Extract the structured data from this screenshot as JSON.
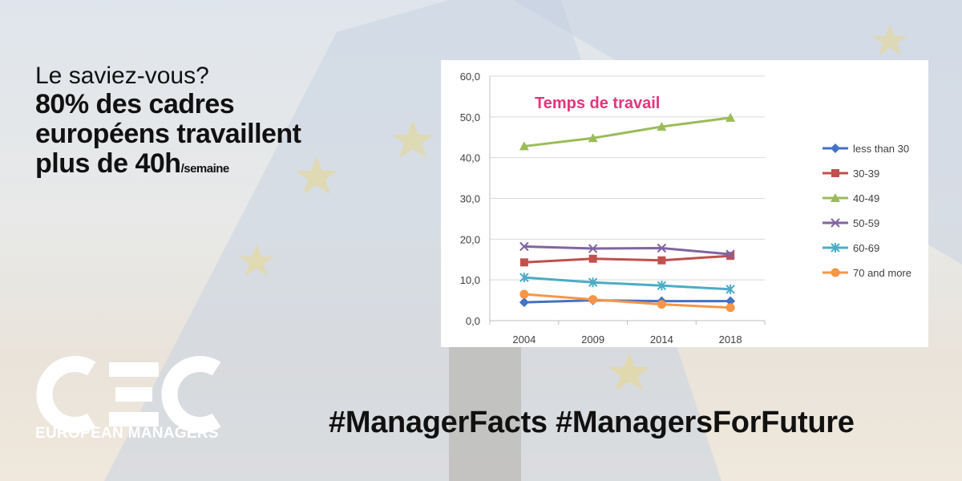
{
  "intro": {
    "line1": "Le saviez-vous?",
    "line2": "80% des cadres",
    "line3": "européens travaillent",
    "line4": "plus de 40h",
    "unit": "/semaine"
  },
  "logo": {
    "letters": "CEC",
    "subtitle": "EUROPEAN MANAGERS"
  },
  "hashtags": "#ManagerFacts #ManagersForFuture",
  "colors": {
    "chart_title": "#e5337d",
    "logo": "#ffffff",
    "eu_star": "#f2d35a"
  },
  "chart_data": {
    "type": "line",
    "title": "Temps de travail",
    "xlabel": "",
    "ylabel": "",
    "categories": [
      "2004",
      "2009",
      "2014",
      "2018"
    ],
    "ylim": [
      0,
      60
    ],
    "yticks": [
      "0,0",
      "10,0",
      "20,0",
      "30,0",
      "40,0",
      "50,0",
      "60,0"
    ],
    "grid": true,
    "legend_position": "right",
    "series": [
      {
        "name": "less than 30",
        "values": [
          4.5,
          5.0,
          4.8,
          4.8
        ],
        "color": "#4472c4",
        "marker": "diamond"
      },
      {
        "name": "30-39",
        "values": [
          14.3,
          15.2,
          14.8,
          15.9
        ],
        "color": "#c0504d",
        "marker": "square"
      },
      {
        "name": "40-49",
        "values": [
          42.8,
          44.8,
          47.6,
          49.8
        ],
        "color": "#9bbb59",
        "marker": "triangle"
      },
      {
        "name": "50-59",
        "values": [
          18.2,
          17.7,
          17.8,
          16.3
        ],
        "color": "#8064a2",
        "marker": "x"
      },
      {
        "name": "60-69",
        "values": [
          10.6,
          9.4,
          8.6,
          7.7
        ],
        "color": "#4bacc6",
        "marker": "star"
      },
      {
        "name": "70 and more",
        "values": [
          6.5,
          5.2,
          4.0,
          3.2
        ],
        "color": "#f79646",
        "marker": "circle"
      }
    ]
  }
}
